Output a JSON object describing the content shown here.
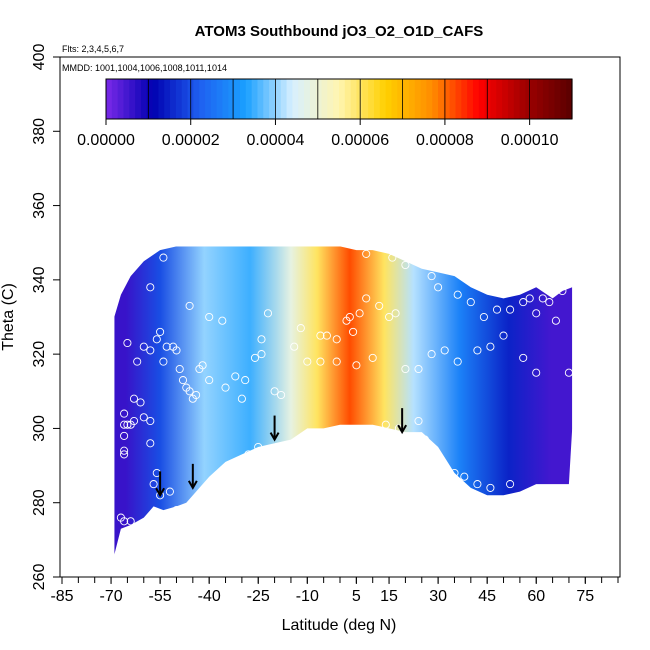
{
  "chart_data": {
    "type": "heatmap",
    "title": "ATOM3 Southbound jO3_O2_O1D_CAFS",
    "subtitle_flights": "Flts: 2,3,4,5,6,7",
    "subtitle_dates": "MMDD: 1001,1004,1006,1008,1011,1014",
    "xlabel": "Latitude (deg N)",
    "ylabel": "Theta (C)",
    "xlim": [
      -85,
      85
    ],
    "ylim": [
      260,
      400
    ],
    "x_tick_labels": [
      "-85",
      "-70",
      "-55",
      "-40",
      "-25",
      "-10",
      "5",
      "15",
      "30",
      "45",
      "60",
      "75"
    ],
    "x_tick_values": [
      -85,
      -70,
      -55,
      -40,
      -25,
      -10,
      5,
      15,
      30,
      45,
      60,
      75
    ],
    "y_tick_labels": [
      "260",
      "280",
      "300",
      "320",
      "340",
      "360",
      "380",
      "400"
    ],
    "y_tick_values": [
      260,
      280,
      300,
      320,
      340,
      360,
      380,
      400
    ],
    "colorbar": {
      "range": [
        0,
        0.00011
      ],
      "tick_labels": [
        "0.00000",
        "0.00002",
        "0.00004",
        "0.00006",
        "0.00008",
        "0.00010"
      ],
      "tick_values": [
        0,
        2e-05,
        4e-05,
        6e-05,
        8e-05,
        0.0001
      ],
      "colors": [
        "#7b2ae8",
        "#0000b0",
        "#1f5ff0",
        "#1aa0ff",
        "#d8f0ff",
        "#fff5b0",
        "#ffd000",
        "#ff8c00",
        "#ff0000",
        "#a00000",
        "#5a0000"
      ]
    },
    "field_boundary": {
      "lat": [
        -69,
        -67,
        -64,
        -60,
        -57,
        -54,
        -50,
        -47,
        -44,
        -40,
        -35,
        -30,
        -25,
        -20,
        -15,
        -10,
        -5,
        0,
        5,
        10,
        15,
        20,
        25,
        30,
        35,
        40,
        45,
        50,
        55,
        60,
        66,
        70,
        71,
        71,
        68,
        65,
        60,
        55,
        50,
        45,
        40,
        35,
        30,
        25,
        20,
        15,
        10,
        5,
        0,
        -5,
        -10,
        -15,
        -20,
        -25,
        -30,
        -35,
        -40,
        -45,
        -50,
        -55,
        -60,
        -64,
        -67,
        -69
      ],
      "theta": [
        266,
        273,
        274,
        276,
        279,
        278,
        279,
        280,
        283,
        287,
        291,
        293,
        295,
        296,
        297,
        300,
        300,
        301,
        301,
        301,
        300,
        299,
        299,
        295,
        288,
        284,
        282,
        282,
        283,
        285,
        285,
        285,
        300,
        338,
        337,
        335,
        338,
        336,
        335,
        336,
        338,
        341,
        342,
        343,
        345,
        347,
        348,
        348,
        349,
        349,
        349,
        349,
        349,
        349,
        349,
        349,
        349,
        349,
        349,
        348,
        345,
        341,
        336,
        330
      ]
    },
    "field_bands": [
      {
        "lat_range": [
          -69,
          -62
        ],
        "value": 6e-06
      },
      {
        "lat_range": [
          -62,
          -48
        ],
        "value": 2e-05
      },
      {
        "lat_range": [
          -48,
          -35
        ],
        "value": 4e-05
      },
      {
        "lat_range": [
          -35,
          -20
        ],
        "value": 3.5e-05
      },
      {
        "lat_range": [
          -20,
          -10
        ],
        "value": 4.8e-05
      },
      {
        "lat_range": [
          -10,
          -4
        ],
        "value": 6e-05
      },
      {
        "lat_range": [
          -4,
          10
        ],
        "value": 8.2e-05
      },
      {
        "lat_range": [
          10,
          17
        ],
        "value": 6e-05
      },
      {
        "lat_range": [
          17,
          28
        ],
        "value": 4.2e-05
      },
      {
        "lat_range": [
          28,
          45
        ],
        "value": 2.8e-05
      },
      {
        "lat_range": [
          45,
          58
        ],
        "value": 1.5e-05
      },
      {
        "lat_range": [
          58,
          71
        ],
        "value": 5e-06
      }
    ],
    "observations": [
      [
        -67,
        276
      ],
      [
        -66,
        275
      ],
      [
        -64,
        275
      ],
      [
        -66,
        301
      ],
      [
        -65,
        301
      ],
      [
        -64,
        301
      ],
      [
        -63,
        302
      ],
      [
        -66,
        304
      ],
      [
        -66,
        298
      ],
      [
        -66,
        294
      ],
      [
        -66,
        293
      ],
      [
        -63,
        308
      ],
      [
        -61,
        307
      ],
      [
        -60,
        303
      ],
      [
        -58,
        302
      ],
      [
        -58,
        296
      ],
      [
        -56,
        288
      ],
      [
        -55,
        282
      ],
      [
        -57,
        285
      ],
      [
        -52,
        283
      ],
      [
        -50,
        278
      ],
      [
        -65,
        323
      ],
      [
        -62,
        318
      ],
      [
        -60,
        322
      ],
      [
        -58,
        321
      ],
      [
        -56,
        324
      ],
      [
        -55,
        326
      ],
      [
        -54,
        318
      ],
      [
        -53,
        322
      ],
      [
        -51,
        322
      ],
      [
        -50,
        321
      ],
      [
        -49,
        316
      ],
      [
        -48,
        313
      ],
      [
        -47,
        311
      ],
      [
        -46,
        310
      ],
      [
        -45,
        308
      ],
      [
        -44,
        309
      ],
      [
        -43,
        316
      ],
      [
        -42,
        317
      ],
      [
        -40,
        313
      ],
      [
        -35,
        311
      ],
      [
        -32,
        314
      ],
      [
        -29,
        313
      ],
      [
        -26,
        319
      ],
      [
        -24,
        320
      ],
      [
        -24,
        324
      ],
      [
        -22,
        331
      ],
      [
        -20,
        310
      ],
      [
        -18,
        309
      ],
      [
        -30,
        308
      ],
      [
        -28,
        293
      ],
      [
        -25,
        295
      ],
      [
        -54,
        346
      ],
      [
        -58,
        338
      ],
      [
        -46,
        333
      ],
      [
        -40,
        330
      ],
      [
        -36,
        329
      ],
      [
        -14,
        322
      ],
      [
        -12,
        327
      ],
      [
        -6,
        325
      ],
      [
        -4,
        325
      ],
      [
        -1,
        324
      ],
      [
        2,
        329
      ],
      [
        3,
        330
      ],
      [
        4,
        326
      ],
      [
        6,
        331
      ],
      [
        8,
        335
      ],
      [
        12,
        333
      ],
      [
        15,
        330
      ],
      [
        17,
        331
      ],
      [
        14,
        301
      ],
      [
        18,
        300
      ],
      [
        24,
        302
      ],
      [
        26,
        297
      ],
      [
        30,
        291
      ],
      [
        35,
        288
      ],
      [
        38,
        287
      ],
      [
        42,
        285
      ],
      [
        46,
        284
      ],
      [
        52,
        285
      ],
      [
        8,
        347
      ],
      [
        16,
        346
      ],
      [
        20,
        344
      ],
      [
        28,
        341
      ],
      [
        30,
        338
      ],
      [
        36,
        336
      ],
      [
        40,
        334
      ],
      [
        44,
        330
      ],
      [
        48,
        332
      ],
      [
        52,
        332
      ],
      [
        56,
        334
      ],
      [
        58,
        335
      ],
      [
        60,
        331
      ],
      [
        62,
        335
      ],
      [
        64,
        334
      ],
      [
        66,
        329
      ],
      [
        68,
        337
      ],
      [
        70,
        315
      ],
      [
        60,
        315
      ],
      [
        56,
        319
      ],
      [
        50,
        325
      ],
      [
        46,
        322
      ],
      [
        42,
        321
      ],
      [
        36,
        318
      ],
      [
        32,
        321
      ],
      [
        28,
        320
      ],
      [
        24,
        316
      ],
      [
        20,
        316
      ],
      [
        10,
        319
      ],
      [
        5,
        317
      ],
      [
        -1,
        318
      ],
      [
        -6,
        318
      ],
      [
        -10,
        318
      ]
    ],
    "arrows": [
      {
        "lat": -55,
        "theta": 282
      },
      {
        "lat": -45,
        "theta": 284
      },
      {
        "lat": -20,
        "theta": 297
      },
      {
        "lat": 19,
        "theta": 299
      }
    ]
  }
}
